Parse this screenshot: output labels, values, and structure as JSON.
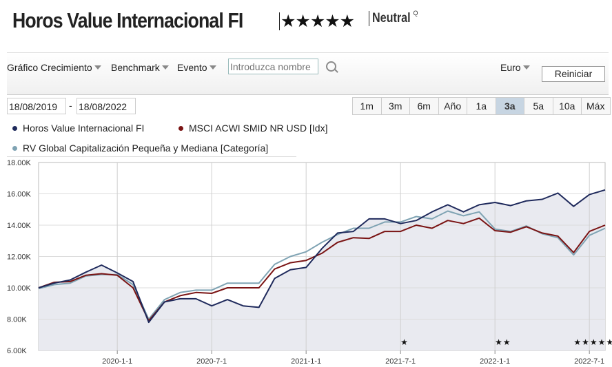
{
  "header": {
    "fund_name": "Horos Value Internacional FI",
    "rating_stars": "★★★★★",
    "analyst_rating": "Neutral",
    "analyst_rating_mark": "Q"
  },
  "toolbar": {
    "growth_chart_label": "Gráfico Crecimiento",
    "benchmark_label": "Benchmark",
    "event_label": "Evento",
    "search_placeholder": "Introduzca nombre",
    "currency_label": "Euro",
    "reset_label": "Reiniciar"
  },
  "date_range": {
    "start": "18/08/2019",
    "separator": "-",
    "end": "18/08/2022"
  },
  "periods": [
    {
      "label": "1m",
      "active": false
    },
    {
      "label": "3m",
      "active": false
    },
    {
      "label": "6m",
      "active": false
    },
    {
      "label": "Año",
      "active": false
    },
    {
      "label": "1a",
      "active": false
    },
    {
      "label": "3a",
      "active": true
    },
    {
      "label": "5a",
      "active": false
    },
    {
      "label": "10a",
      "active": false
    },
    {
      "label": "Máx",
      "active": false
    }
  ],
  "colors": {
    "fund": "#1f2a5c",
    "benchmark": "#7a1414",
    "category": "#7fa3b3",
    "plot_bg": "#e9eaf0",
    "grid": "#d0d0d0"
  },
  "chart_data": {
    "type": "line",
    "ylim": [
      6000,
      18000
    ],
    "y_ticks": [
      {
        "value": 6000,
        "label": "6.00K"
      },
      {
        "value": 8000,
        "label": "8.00K"
      },
      {
        "value": 10000,
        "label": "10.00K"
      },
      {
        "value": 12000,
        "label": "12.00K"
      },
      {
        "value": 14000,
        "label": "14.00K"
      },
      {
        "value": 16000,
        "label": "16.00K"
      },
      {
        "value": 18000,
        "label": "18.00K"
      }
    ],
    "x_ticks": [
      "2020-1-1",
      "2020-7-1",
      "2021-1-1",
      "2021-7-1",
      "2022-1-1",
      "2022-7-1"
    ],
    "x": [
      "2019-08",
      "2019-09",
      "2019-10",
      "2019-11",
      "2019-12",
      "2020-01",
      "2020-02",
      "2020-03",
      "2020-04",
      "2020-05",
      "2020-06",
      "2020-07",
      "2020-08",
      "2020-09",
      "2020-10",
      "2020-11",
      "2020-12",
      "2021-01",
      "2021-02",
      "2021-03",
      "2021-04",
      "2021-05",
      "2021-06",
      "2021-07",
      "2021-08",
      "2021-09",
      "2021-10",
      "2021-11",
      "2021-12",
      "2022-01",
      "2022-02",
      "2022-03",
      "2022-04",
      "2022-05",
      "2022-06",
      "2022-07",
      "2022-08"
    ],
    "series": [
      {
        "name": "Horos Value Internacional FI",
        "color_key": "fund",
        "values": [
          10000,
          10300,
          10500,
          11000,
          11450,
          10950,
          10400,
          7800,
          9100,
          9300,
          9300,
          8850,
          9250,
          8850,
          8750,
          10600,
          11150,
          11300,
          12500,
          13500,
          13600,
          14400,
          14400,
          14100,
          14300,
          14850,
          15300,
          14850,
          15300,
          15450,
          15250,
          15550,
          15650,
          16050,
          15200,
          15950,
          16250
        ]
      },
      {
        "name": "MSCI ACWI SMID NR USD [Idx]",
        "color_key": "benchmark",
        "values": [
          10000,
          10350,
          10400,
          10800,
          10900,
          10800,
          10000,
          7900,
          9100,
          9500,
          9700,
          9650,
          10000,
          10000,
          10000,
          11200,
          11600,
          11750,
          12200,
          12900,
          13200,
          13150,
          13600,
          13600,
          14000,
          13800,
          14300,
          14100,
          14450,
          13650,
          13550,
          13900,
          13500,
          13300,
          12250,
          13600,
          14000
        ]
      },
      {
        "name": "RV Global Capitalización Pequeña y Mediana [Categoría]",
        "color_key": "category",
        "values": [
          9950,
          10200,
          10300,
          10750,
          10850,
          10850,
          10200,
          8000,
          9250,
          9700,
          9850,
          9850,
          10300,
          10300,
          10300,
          11500,
          12000,
          12300,
          12900,
          13400,
          13800,
          13800,
          14200,
          14200,
          14550,
          14400,
          14900,
          14600,
          14850,
          13750,
          13600,
          13950,
          13450,
          13200,
          12100,
          13350,
          13800
        ]
      }
    ],
    "events": [
      {
        "x": "2021-07",
        "label": "★"
      },
      {
        "x": "2022-01",
        "label": "★★"
      },
      {
        "x": "2022-06",
        "label": "★★★★★"
      }
    ]
  }
}
